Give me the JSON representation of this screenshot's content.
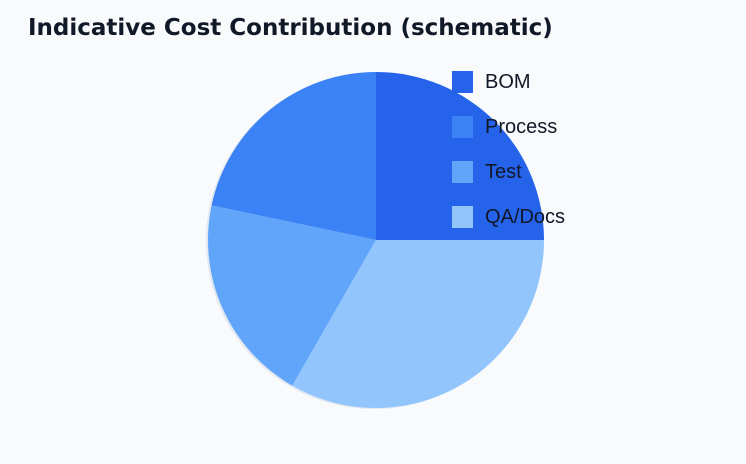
{
  "chart_data": {
    "type": "pie",
    "title": "Indicative Cost Contribution (schematic)",
    "categories": [
      "BOM",
      "Process",
      "Test",
      "QA/Docs"
    ],
    "values": [
      25,
      21.7,
      20,
      33.3
    ],
    "colors": [
      "#2563eb",
      "#3b82f6",
      "#60a5fa",
      "#93c5fd"
    ],
    "legend": "top-right",
    "start_angle": "top",
    "direction": "counterclockwise"
  }
}
